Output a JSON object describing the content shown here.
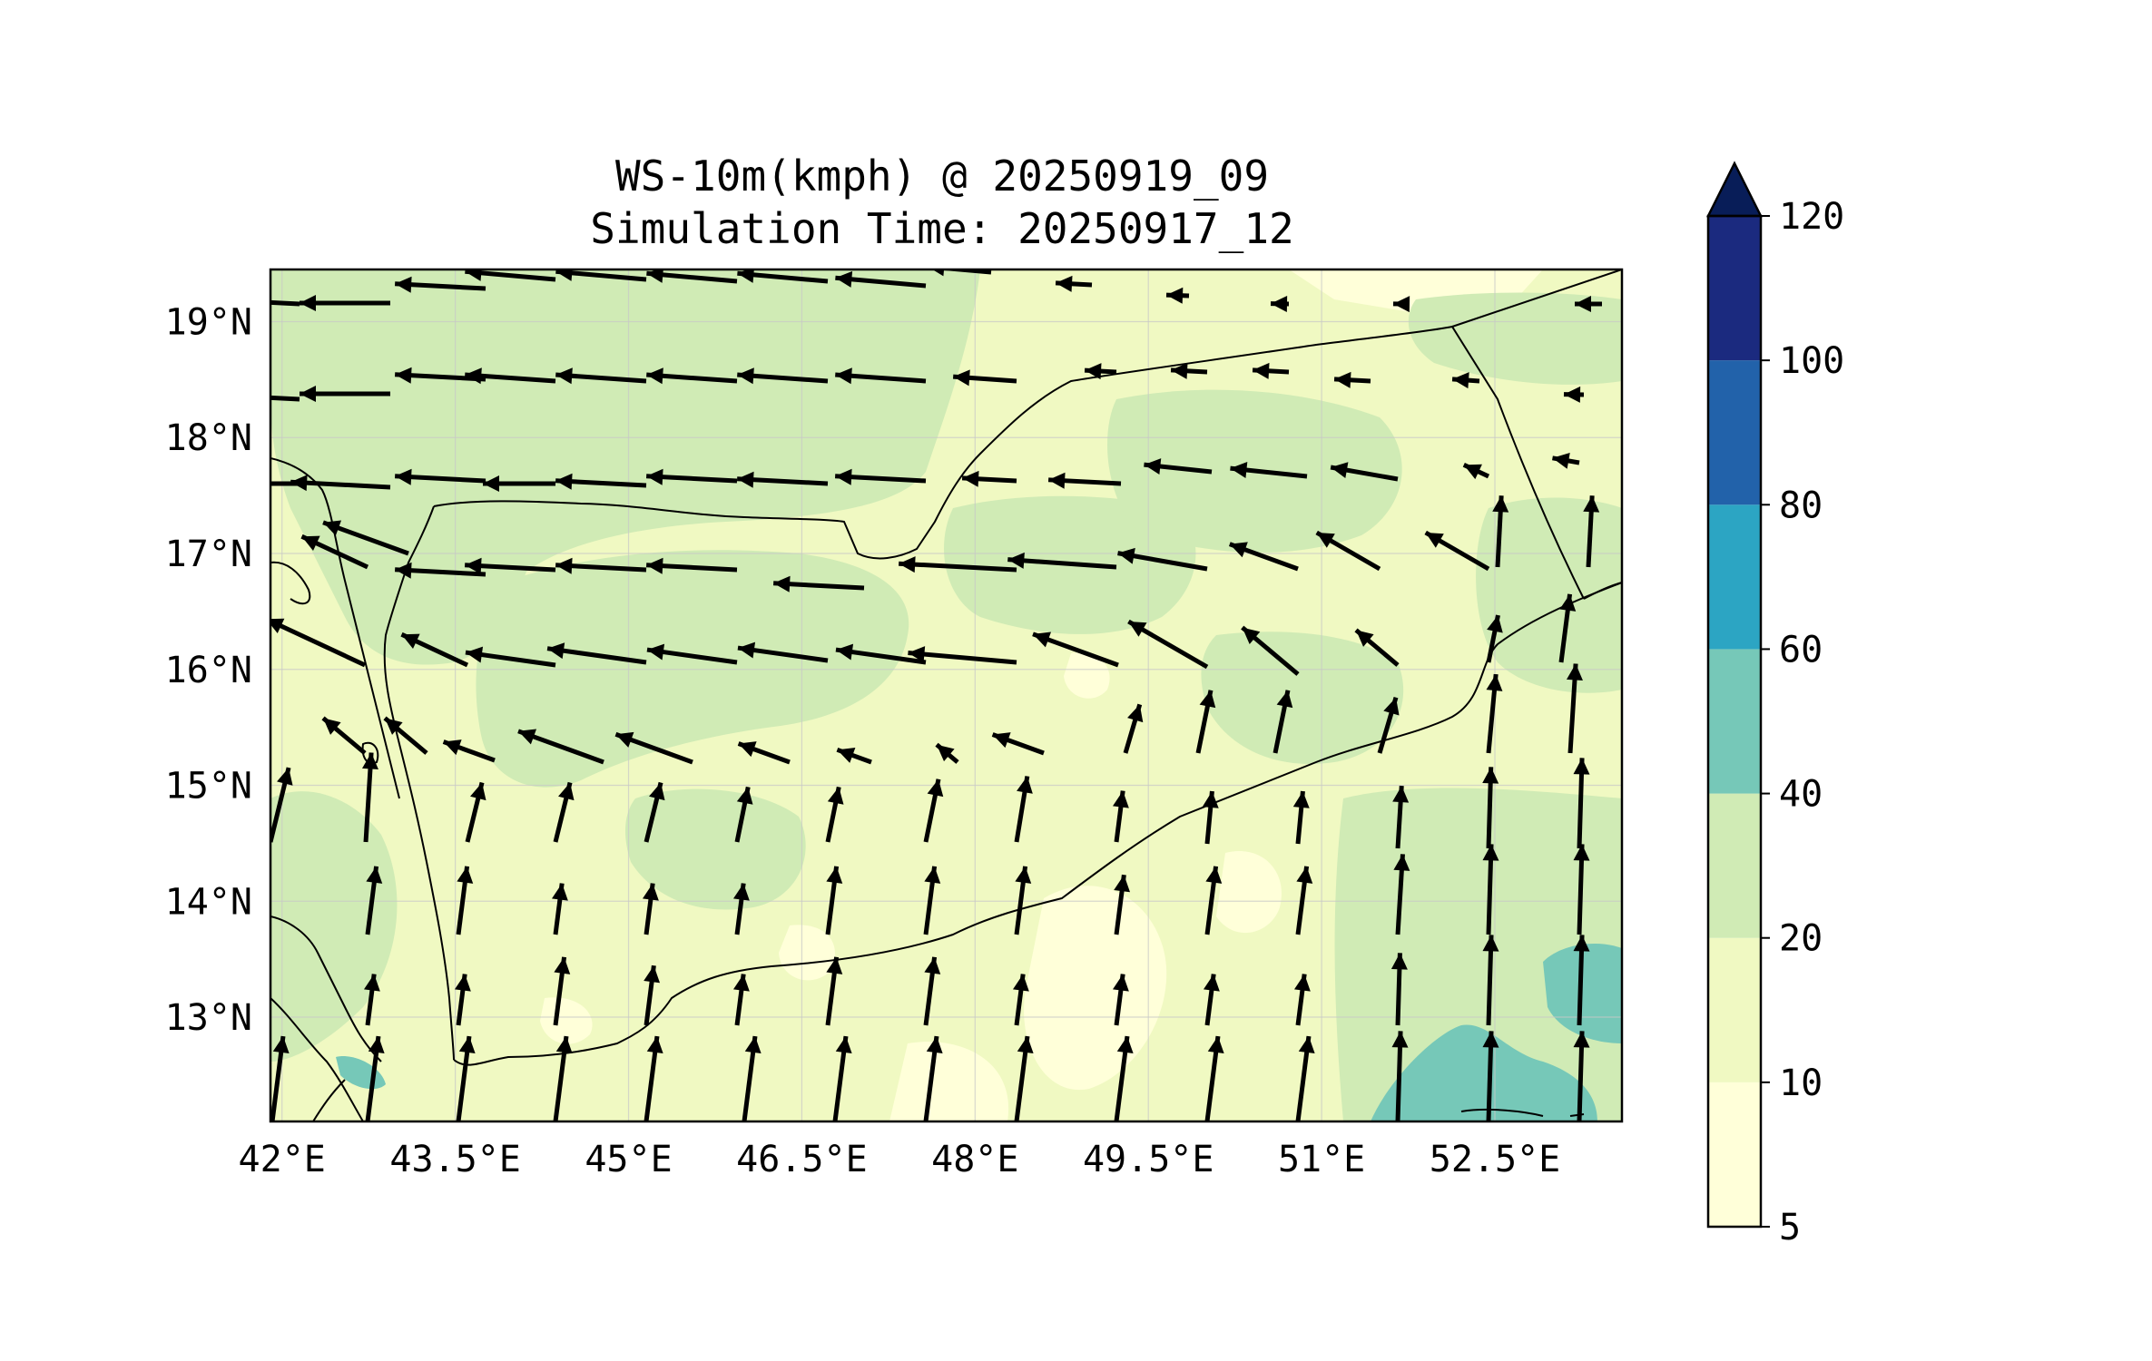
{
  "title": {
    "line1": "WS-10m(kmph) @ 20250919_09",
    "line2": "Simulation Time: 20250917_12"
  },
  "map": {
    "lon_range": [
      41.9,
      53.6
    ],
    "lat_range": [
      12.1,
      19.45
    ],
    "lon_ticks": [
      {
        "value": 42.0,
        "label": "42°E"
      },
      {
        "value": 43.5,
        "label": "43.5°E"
      },
      {
        "value": 45.0,
        "label": "45°E"
      },
      {
        "value": 46.5,
        "label": "46.5°E"
      },
      {
        "value": 48.0,
        "label": "48°E"
      },
      {
        "value": 49.5,
        "label": "49.5°E"
      },
      {
        "value": 51.0,
        "label": "51°E"
      },
      {
        "value": 52.5,
        "label": "52.5°E"
      }
    ],
    "lat_ticks": [
      {
        "value": 19,
        "label": "19°N"
      },
      {
        "value": 18,
        "label": "18°N"
      },
      {
        "value": 17,
        "label": "17°N"
      },
      {
        "value": 16,
        "label": "16°N"
      },
      {
        "value": 15,
        "label": "15°N"
      },
      {
        "value": 14,
        "label": "14°N"
      },
      {
        "value": 13,
        "label": "13°N"
      }
    ],
    "gridlines": true,
    "colors": {
      "band_5_10": "#ffffd9",
      "band_10_20": "#f0f9c2",
      "band_20_40": "#d0ebb5",
      "band_40_60": "#76c8b8",
      "arrow": "#000000",
      "border": "#000000"
    }
  },
  "colorbar": {
    "levels": [
      5,
      10,
      20,
      40,
      60,
      80,
      100,
      120
    ],
    "labels": [
      "5",
      "10",
      "20",
      "40",
      "60",
      "80",
      "100",
      "120"
    ],
    "colors": [
      "#ffffd9",
      "#f0f9c2",
      "#d0ebb5",
      "#76c8b8",
      "#2ca5c3",
      "#2262aa",
      "#1b2a7f"
    ],
    "extend_color": "#081d58",
    "extend": "max"
  }
}
